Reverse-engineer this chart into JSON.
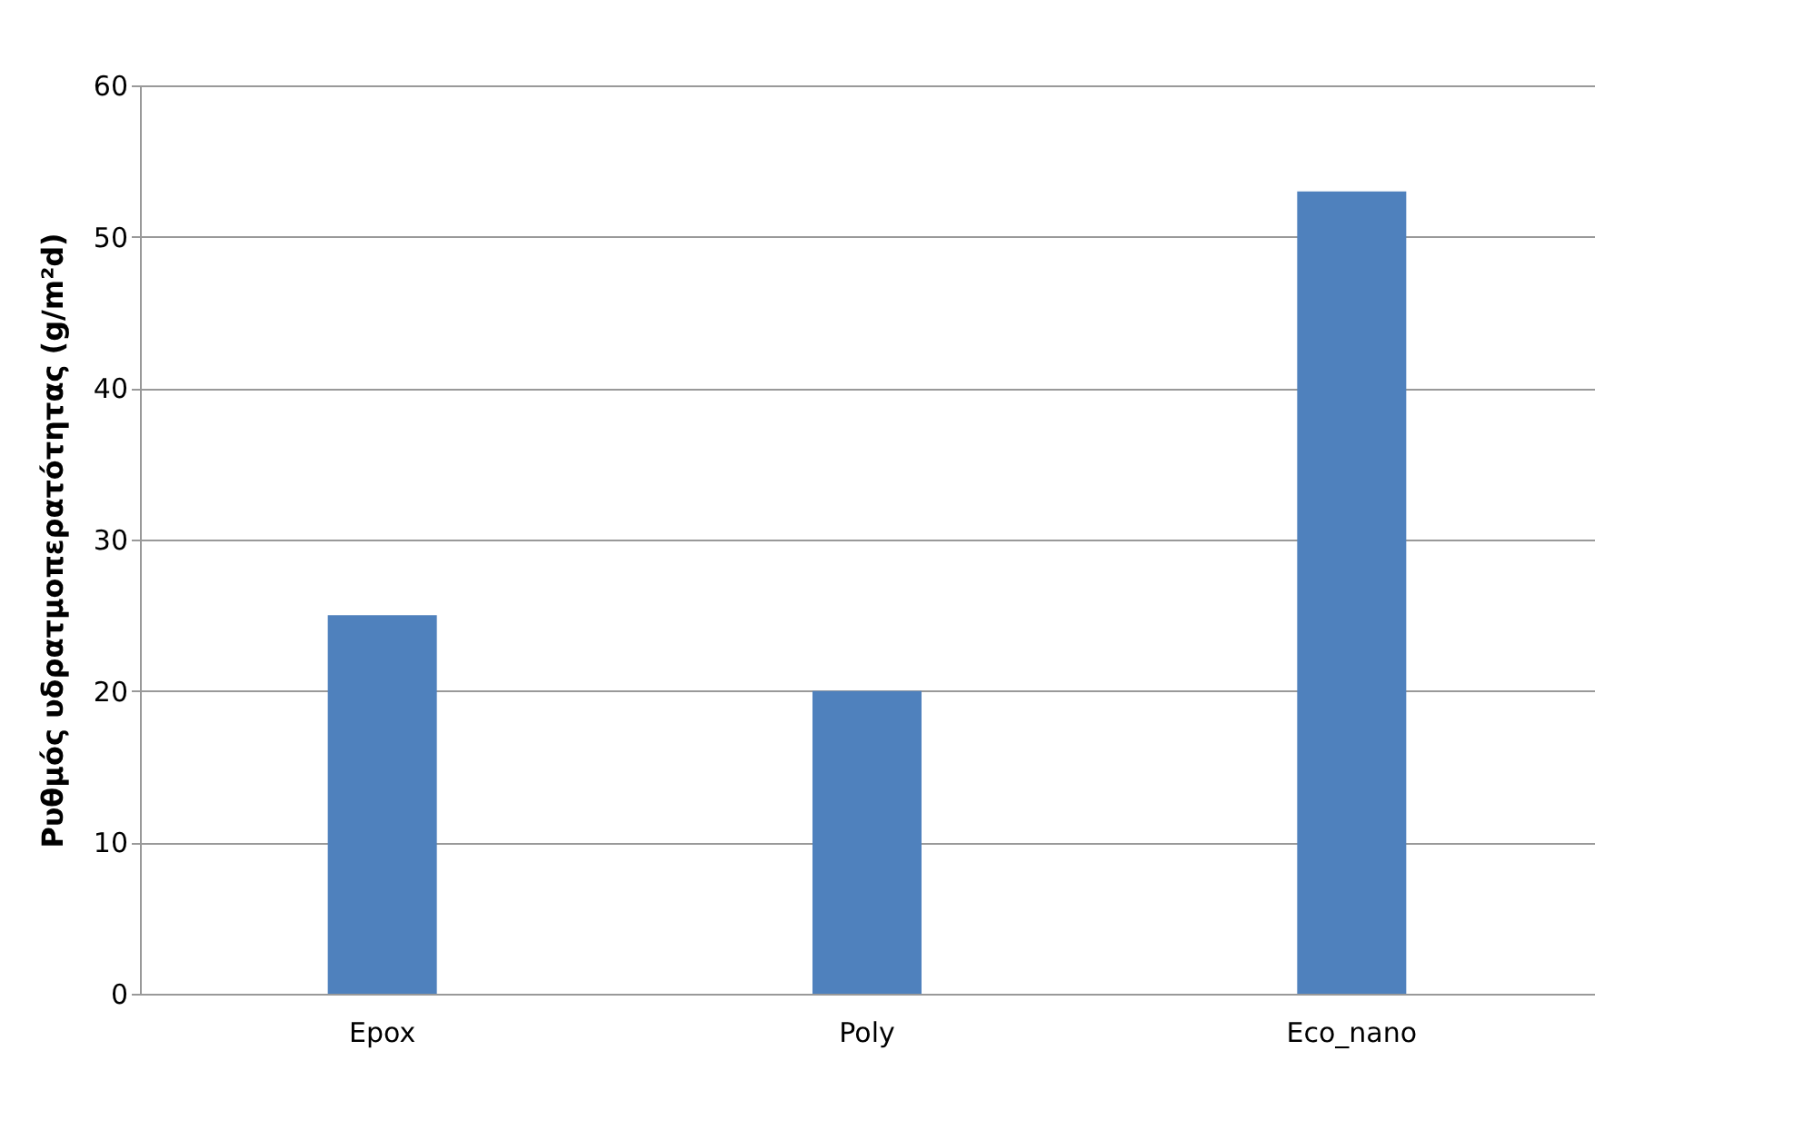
{
  "chart_data": {
    "type": "bar",
    "ylabel": "Ρυθμός υδρατμοπερατότητας (g/m²d)",
    "categories": [
      "Epox",
      "Poly",
      "Eco_nano"
    ],
    "values": [
      25,
      20,
      53
    ],
    "color": "#4f81bd",
    "ylim": [
      0,
      60
    ],
    "yticks": [
      0,
      10,
      20,
      30,
      40,
      50,
      60
    ],
    "grid": "y"
  }
}
